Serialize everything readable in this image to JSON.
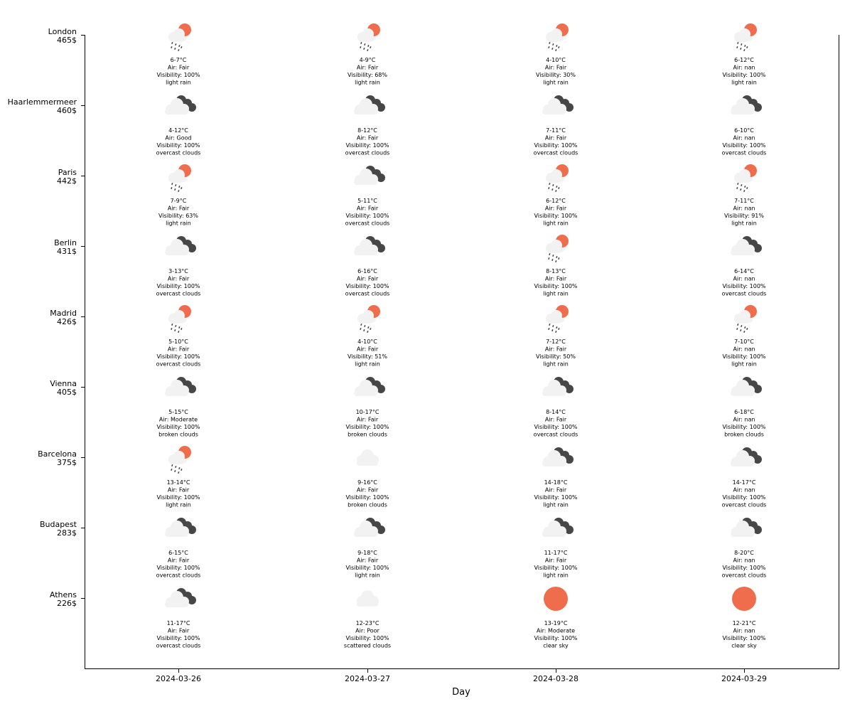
{
  "chart_data": {
    "type": "table",
    "xlabel": "Day",
    "dates": [
      "2024-03-26",
      "2024-03-27",
      "2024-03-28",
      "2024-03-29"
    ],
    "colors": {
      "sun": "#ef6d4d",
      "dark_cloud": "#474747",
      "light_cloud": "#f2f2f2",
      "rain": "#474747"
    },
    "rows": [
      {
        "city": "London",
        "price": "465$",
        "cells": [
          {
            "temp": "6-7°C",
            "air": "Air: Fair",
            "visibility": "Visibility: 100%",
            "desc": "light rain",
            "icon": "rain-sun-icon"
          },
          {
            "temp": "4-9°C",
            "air": "Air: Fair",
            "visibility": "Visibility: 68%",
            "desc": "light rain",
            "icon": "rain-sun-icon"
          },
          {
            "temp": "4-10°C",
            "air": "Air: Fair",
            "visibility": "Visibility: 30%",
            "desc": "light rain",
            "icon": "rain-sun-icon"
          },
          {
            "temp": "6-12°C",
            "air": "Air: nan",
            "visibility": "Visibility: 100%",
            "desc": "light rain",
            "icon": "rain-sun-icon"
          }
        ]
      },
      {
        "city": "Haarlemmermeer",
        "price": "460$",
        "cells": [
          {
            "temp": "4-12°C",
            "air": "Air: Good",
            "visibility": "Visibility: 100%",
            "desc": "overcast clouds",
            "icon": "overcast-icon"
          },
          {
            "temp": "8-12°C",
            "air": "Air: Fair",
            "visibility": "Visibility: 100%",
            "desc": "overcast clouds",
            "icon": "overcast-icon"
          },
          {
            "temp": "7-11°C",
            "air": "Air: Fair",
            "visibility": "Visibility: 100%",
            "desc": "overcast clouds",
            "icon": "overcast-icon"
          },
          {
            "temp": "6-10°C",
            "air": "Air: nan",
            "visibility": "Visibility: 100%",
            "desc": "overcast clouds",
            "icon": "overcast-icon"
          }
        ]
      },
      {
        "city": "Paris",
        "price": "442$",
        "cells": [
          {
            "temp": "7-9°C",
            "air": "Air: Fair",
            "visibility": "Visibility: 63%",
            "desc": "light rain",
            "icon": "rain-sun-icon"
          },
          {
            "temp": "5-11°C",
            "air": "Air: Fair",
            "visibility": "Visibility: 100%",
            "desc": "overcast clouds",
            "icon": "overcast-icon"
          },
          {
            "temp": "6-12°C",
            "air": "Air: Fair",
            "visibility": "Visibility: 100%",
            "desc": "light rain",
            "icon": "rain-sun-icon"
          },
          {
            "temp": "7-11°C",
            "air": "Air: nan",
            "visibility": "Visibility: 91%",
            "desc": "light rain",
            "icon": "rain-sun-icon"
          }
        ]
      },
      {
        "city": "Berlin",
        "price": "431$",
        "cells": [
          {
            "temp": "3-13°C",
            "air": "Air: Fair",
            "visibility": "Visibility: 100%",
            "desc": "overcast clouds",
            "icon": "overcast-icon"
          },
          {
            "temp": "6-16°C",
            "air": "Air: Fair",
            "visibility": "Visibility: 100%",
            "desc": "overcast clouds",
            "icon": "overcast-icon"
          },
          {
            "temp": "8-13°C",
            "air": "Air: Fair",
            "visibility": "Visibility: 100%",
            "desc": "light rain",
            "icon": "rain-sun-icon"
          },
          {
            "temp": "6-14°C",
            "air": "Air: nan",
            "visibility": "Visibility: 100%",
            "desc": "overcast clouds",
            "icon": "overcast-icon"
          }
        ]
      },
      {
        "city": "Madrid",
        "price": "426$",
        "cells": [
          {
            "temp": "5-10°C",
            "air": "Air: Fair",
            "visibility": "Visibility: 100%",
            "desc": "overcast clouds",
            "icon": "rain-sun-icon"
          },
          {
            "temp": "4-10°C",
            "air": "Air: Fair",
            "visibility": "Visibility: 51%",
            "desc": "light rain",
            "icon": "rain-sun-icon"
          },
          {
            "temp": "7-12°C",
            "air": "Air: Fair",
            "visibility": "Visibility: 50%",
            "desc": "light rain",
            "icon": "rain-sun-icon"
          },
          {
            "temp": "7-10°C",
            "air": "Air: nan",
            "visibility": "Visibility: 100%",
            "desc": "light rain",
            "icon": "rain-sun-icon"
          }
        ]
      },
      {
        "city": "Vienna",
        "price": "405$",
        "cells": [
          {
            "temp": "5-15°C",
            "air": "Air: Moderate",
            "visibility": "Visibility: 100%",
            "desc": "broken clouds",
            "icon": "overcast-icon"
          },
          {
            "temp": "10-17°C",
            "air": "Air: Fair",
            "visibility": "Visibility: 100%",
            "desc": "broken clouds",
            "icon": "overcast-icon"
          },
          {
            "temp": "8-14°C",
            "air": "Air: Fair",
            "visibility": "Visibility: 100%",
            "desc": "overcast clouds",
            "icon": "overcast-icon"
          },
          {
            "temp": "6-18°C",
            "air": "Air: nan",
            "visibility": "Visibility: 100%",
            "desc": "broken clouds",
            "icon": "overcast-icon"
          }
        ]
      },
      {
        "city": "Barcelona",
        "price": "375$",
        "cells": [
          {
            "temp": "13-14°C",
            "air": "Air: Fair",
            "visibility": "Visibility: 100%",
            "desc": "light rain",
            "icon": "rain-sun-icon"
          },
          {
            "temp": "9-16°C",
            "air": "Air: Fair",
            "visibility": "Visibility: 100%",
            "desc": "broken clouds",
            "icon": "cloud-icon"
          },
          {
            "temp": "14-18°C",
            "air": "Air: Fair",
            "visibility": "Visibility: 100%",
            "desc": "light rain",
            "icon": "overcast-icon"
          },
          {
            "temp": "14-17°C",
            "air": "Air: nan",
            "visibility": "Visibility: 100%",
            "desc": "overcast clouds",
            "icon": "overcast-icon"
          }
        ]
      },
      {
        "city": "Budapest",
        "price": "283$",
        "cells": [
          {
            "temp": "6-15°C",
            "air": "Air: Fair",
            "visibility": "Visibility: 100%",
            "desc": "overcast clouds",
            "icon": "overcast-icon"
          },
          {
            "temp": "9-18°C",
            "air": "Air: Fair",
            "visibility": "Visibility: 100%",
            "desc": "light rain",
            "icon": "overcast-icon"
          },
          {
            "temp": "11-17°C",
            "air": "Air: Fair",
            "visibility": "Visibility: 100%",
            "desc": "light rain",
            "icon": "overcast-icon"
          },
          {
            "temp": "8-20°C",
            "air": "Air: nan",
            "visibility": "Visibility: 100%",
            "desc": "overcast clouds",
            "icon": "overcast-icon"
          }
        ]
      },
      {
        "city": "Athens",
        "price": "226$",
        "cells": [
          {
            "temp": "11-17°C",
            "air": "Air: Fair",
            "visibility": "Visibility: 100%",
            "desc": "overcast clouds",
            "icon": "overcast-icon"
          },
          {
            "temp": "12-23°C",
            "air": "Air: Poor",
            "visibility": "Visibility: 100%",
            "desc": "scattered clouds",
            "icon": "cloud-icon"
          },
          {
            "temp": "13-19°C",
            "air": "Air: Moderate",
            "visibility": "Visibility: 100%",
            "desc": "clear sky",
            "icon": "sun-icon"
          },
          {
            "temp": "12-21°C",
            "air": "Air: nan",
            "visibility": "Visibility: 100%",
            "desc": "clear sky",
            "icon": "sun-icon"
          }
        ]
      }
    ]
  }
}
